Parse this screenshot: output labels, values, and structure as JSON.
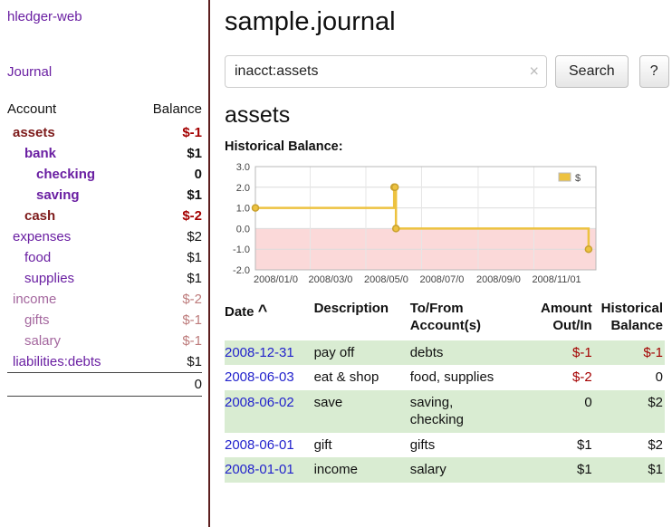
{
  "colors": {
    "accent_purple": "#6a1fa2",
    "maroon_account": "#7d1a1a",
    "negative_red": "#a40000",
    "negative_muted": "#bd7b7b",
    "link_blue": "#2222cc",
    "row_green": "#d9ecd2",
    "sidebar_border": "#5c1f1f",
    "chart_line_gold": "#edc240",
    "chart_negative_pink": "#fbd9d9"
  },
  "sidebar": {
    "app_title": "hledger-web",
    "journal_link": "Journal",
    "accounts": {
      "header_account": "Account",
      "header_balance": "Balance",
      "total": "0",
      "rows": [
        {
          "name": "assets",
          "balance": "$-1",
          "level": 1,
          "bold": true,
          "name_color": "maroon",
          "balance_color": "neg"
        },
        {
          "name": "bank",
          "balance": "$1",
          "level": 2,
          "bold": true
        },
        {
          "name": "checking",
          "balance": "0",
          "level": 3,
          "bold": true
        },
        {
          "name": "saving",
          "balance": "$1",
          "level": 3,
          "bold": true
        },
        {
          "name": "cash",
          "balance": "$-2",
          "level": 2,
          "bold": true,
          "name_color": "maroon",
          "balance_color": "neg"
        },
        {
          "name": "expenses",
          "balance": "$2",
          "level": 1
        },
        {
          "name": "food",
          "balance": "$1",
          "level": 2
        },
        {
          "name": "supplies",
          "balance": "$1",
          "level": 2
        },
        {
          "name": "income",
          "balance": "$-2",
          "level": 1,
          "name_color": "mutedname",
          "balance_color": "negmuted"
        },
        {
          "name": "gifts",
          "balance": "$-1",
          "level": 2,
          "name_color": "mutedname",
          "balance_color": "negmuted"
        },
        {
          "name": "salary",
          "balance": "$-1",
          "level": 2,
          "name_color": "mutedname",
          "balance_color": "negmuted"
        },
        {
          "name": "liabilities:debts",
          "balance": "$1",
          "level": 1
        }
      ]
    }
  },
  "main": {
    "title": "sample.journal",
    "search": {
      "value": "inacct:assets",
      "clear_icon": "×",
      "button_label": "Search",
      "help_label": "?"
    },
    "account_heading": "assets",
    "chart_title": "Historical Balance:"
  },
  "chart_data": {
    "type": "line",
    "step": true,
    "title": "Historical Balance:",
    "legend": {
      "position": "top-right",
      "label": "$"
    },
    "series": [
      {
        "name": "$",
        "color": "#edc240",
        "points": [
          [
            "2008-01-01",
            1
          ],
          [
            "2008-06-01",
            2
          ],
          [
            "2008-06-02",
            2
          ],
          [
            "2008-06-03",
            0
          ],
          [
            "2008-12-31",
            -1
          ]
        ]
      }
    ],
    "ylim": [
      -2,
      3
    ],
    "xlim": [
      "2008-01-01",
      "2009-01-08"
    ],
    "yticks": [
      {
        "v": 3,
        "label": "3.0"
      },
      {
        "v": 2,
        "label": "2.0"
      },
      {
        "v": 1,
        "label": "1.0"
      },
      {
        "v": 0,
        "label": "0.0"
      },
      {
        "v": -1,
        "label": "-1.0"
      },
      {
        "v": -2,
        "label": "-2.0"
      }
    ],
    "xticks": [
      {
        "date": "2008-01-01",
        "label": "2008/01/0"
      },
      {
        "date": "2008-03-01",
        "label": "2008/03/0"
      },
      {
        "date": "2008-05-01",
        "label": "2008/05/0"
      },
      {
        "date": "2008-07-01",
        "label": "2008/07/0"
      },
      {
        "date": "2008-09-01",
        "label": "2008/09/0"
      },
      {
        "date": "2008-11-01",
        "label": "2008/11/01"
      }
    ],
    "negative_fill": "#fbd9d9",
    "grid": true
  },
  "register": {
    "headers": {
      "date": "Date",
      "date_sort": "^",
      "description": "Description",
      "tofrom_line1": "To/From",
      "tofrom_line2": "Account(s)",
      "amount_line1": "Amount",
      "amount_line2": "Out/In",
      "balance_line1": "Historical",
      "balance_line2": "Balance"
    },
    "rows": [
      {
        "date": "2008-12-31",
        "description": "pay off",
        "accounts": "debts",
        "amount": "$-1",
        "amount_neg": true,
        "balance": "$-1",
        "balance_neg": true,
        "shaded": true
      },
      {
        "date": "2008-06-03",
        "description": "eat & shop",
        "accounts": "food, supplies",
        "amount": "$-2",
        "amount_neg": true,
        "balance": "0",
        "shaded": false
      },
      {
        "date": "2008-06-02",
        "description": "save",
        "accounts": "saving,\nchecking",
        "amount": "0",
        "balance": "$2",
        "shaded": true
      },
      {
        "date": "2008-06-01",
        "description": "gift",
        "accounts": "gifts",
        "amount": "$1",
        "balance": "$2",
        "shaded": false
      },
      {
        "date": "2008-01-01",
        "description": "income",
        "accounts": "salary",
        "amount": "$1",
        "balance": "$1",
        "shaded": true
      }
    ]
  }
}
